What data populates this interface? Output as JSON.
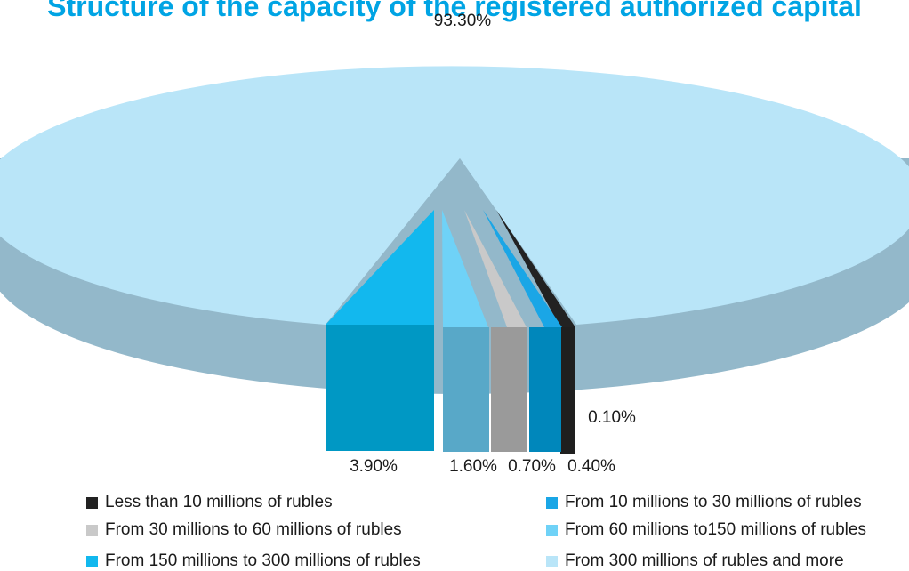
{
  "chart_data": {
    "type": "pie",
    "title": "Structure of the capacity of the registered authorized capital",
    "slices": [
      {
        "label": "Less than 10 millions of rubles",
        "value": 0.1,
        "value_label": "0.10%",
        "color": "#222222"
      },
      {
        "label": "From 10 millions to 30 millions of rubles",
        "value": 0.4,
        "value_label": "0.40%",
        "color": "#1aa6e6"
      },
      {
        "label": "From 30 millions to 60 millions of rubles",
        "value": 0.7,
        "value_label": "0.70%",
        "color": "#c9c9c9"
      },
      {
        "label": "From 60 millions to150 millions of rubles",
        "value": 1.6,
        "value_label": "1.60%",
        "color": "#6fd2f7"
      },
      {
        "label": "From 150 millions to 300 millions of rubles",
        "value": 3.9,
        "value_label": "3.90%",
        "color": "#12b8ee"
      },
      {
        "label": "From 300 millions of rubles and more",
        "value": 93.3,
        "value_label": "93.30%",
        "color": "#b9e5f8"
      }
    ],
    "legend_position": "bottom",
    "style": "3d-exploded"
  }
}
